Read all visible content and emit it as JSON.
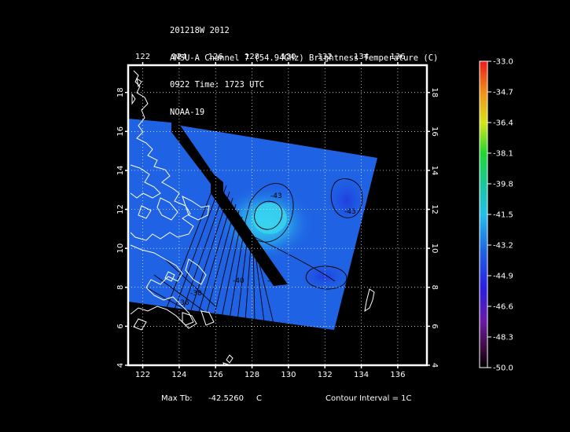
{
  "header": {
    "line1": "201218W 2012",
    "line2": "AMSU-A Channel 7 (54.94GHz) Brightness Temperature (C)",
    "line3": "0922 Time: 1723 UTC",
    "line4": "NOAA-19"
  },
  "axes": {
    "lon_ticks": [
      "122",
      "124",
      "126",
      "128",
      "130",
      "132",
      "134",
      "136"
    ],
    "lat_ticks": [
      "4",
      "6",
      "8",
      "10",
      "12",
      "14",
      "16",
      "18"
    ],
    "lon_range": [
      121.2,
      137.6
    ],
    "lat_range": [
      4,
      19.4
    ],
    "grid": "dotted"
  },
  "colorbar": {
    "labels": [
      "-33.0",
      "-34.7",
      "-36.4",
      "-38.1",
      "-39.8",
      "-41.5",
      "-43.2",
      "-44.9",
      "-46.6",
      "-48.3",
      "-50.0"
    ],
    "range": [
      -50.0,
      -33.0
    ]
  },
  "contours": {
    "labels": [
      "-43",
      "-43",
      "-42",
      "-40",
      "-38",
      "-36"
    ]
  },
  "footer": {
    "max_label": "Max Tb:",
    "max_value": "-42.5260",
    "max_unit": "C",
    "interval": "Contour Interval = 1C"
  },
  "colors": {
    "field": "#1f63e4",
    "warm_spot": "#29c7ef",
    "coast": "#ffffff",
    "swath_gap": "#000000"
  }
}
